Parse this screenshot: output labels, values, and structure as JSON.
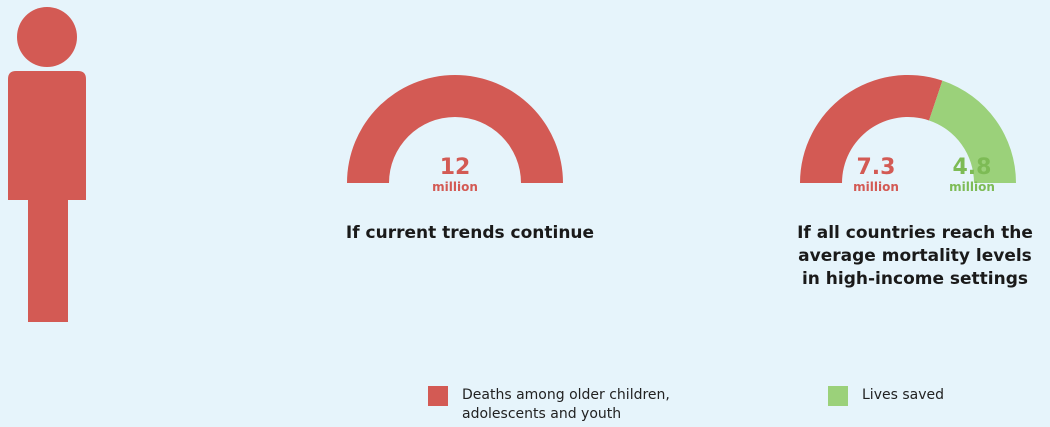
{
  "colors": {
    "deaths": "#d35a54",
    "saved": "#9bd17a",
    "background": "#e6f4fb",
    "figure": "#d35a54"
  },
  "chart_data": {
    "type": "gauge",
    "series": [
      {
        "name": "Deaths among older children, adolescents and youth",
        "color": "#d35a54"
      },
      {
        "name": "Lives saved",
        "color": "#9bd17a"
      }
    ],
    "gauges": [
      {
        "caption": "If current trends continue",
        "total": 12,
        "segments": [
          {
            "series": "Deaths among older children, adolescents and youth",
            "value": 12,
            "label": "12",
            "unit": "million"
          }
        ]
      },
      {
        "caption": "If all countries reach the average mortality levels in high-income settings",
        "total": 12.1,
        "segments": [
          {
            "series": "Deaths among older children, adolescents and youth",
            "value": 7.3,
            "label": "7.3",
            "unit": "million"
          },
          {
            "series": "Lives saved",
            "value": 4.8,
            "label": "4.8",
            "unit": "million"
          }
        ]
      }
    ],
    "legend": {
      "position": "bottom",
      "items": [
        {
          "label": "Deaths among older children, adolescents and youth",
          "color": "#d35a54"
        },
        {
          "label": "Lives saved",
          "color": "#9bd17a"
        }
      ]
    }
  }
}
